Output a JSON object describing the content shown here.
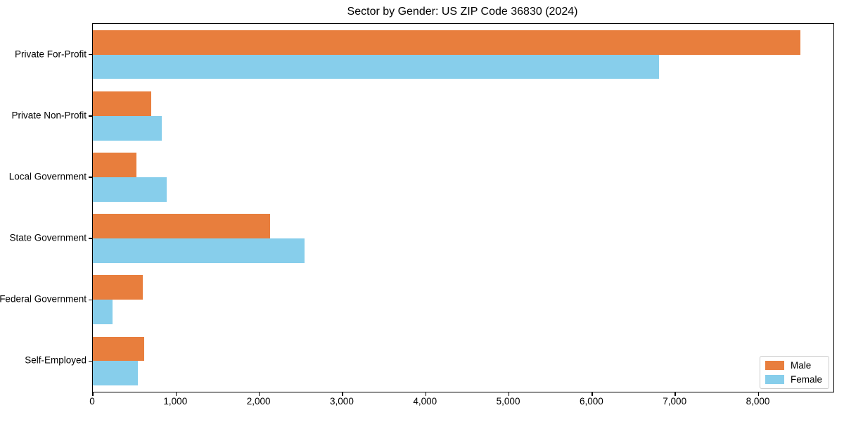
{
  "chart_data": {
    "type": "bar",
    "orientation": "horizontal",
    "title": "Sector by Gender: US ZIP Code 36830 (2024)",
    "categories": [
      "Private For-Profit",
      "Private Non-Profit",
      "Local Government",
      "State Government",
      "Federal Government",
      "Self-Employed"
    ],
    "series": [
      {
        "name": "Male",
        "color": "#e87e3d",
        "values": [
          8500,
          700,
          520,
          2130,
          600,
          620
        ]
      },
      {
        "name": "Female",
        "color": "#87ceeb",
        "values": [
          6800,
          830,
          890,
          2540,
          240,
          540
        ]
      }
    ],
    "xlabel": "",
    "ylabel": "",
    "xlim": [
      0,
      8900
    ],
    "xticks": {
      "values": [
        0,
        1000,
        2000,
        3000,
        4000,
        5000,
        6000,
        7000,
        8000
      ],
      "labels": [
        "0",
        "1,000",
        "2,000",
        "3,000",
        "4,000",
        "5,000",
        "6,000",
        "7,000",
        "8,000"
      ]
    },
    "legend": {
      "position": "lower right"
    },
    "grid": false
  },
  "colors": {
    "background": "#ffffff",
    "spine": "#000000",
    "text": "#000000",
    "legend_border": "#cccccc",
    "male": "#e87e3d",
    "female": "#87ceeb"
  }
}
